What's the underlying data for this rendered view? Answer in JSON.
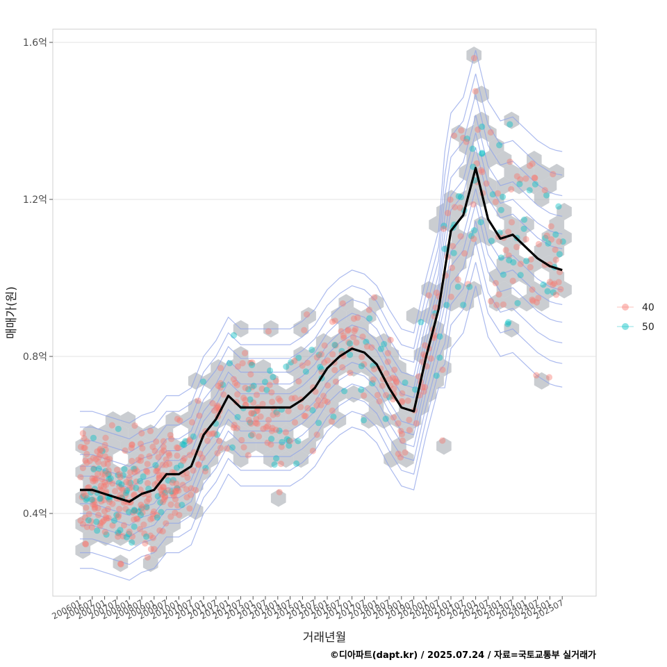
{
  "chart_data": {
    "type": "scatter",
    "xlabel": "거래년월",
    "ylabel": "매매가(원)",
    "caption": "©디아파트(dapt.kr) / 2025.07.24 / 자료=국토교통부 실거래가",
    "x_ticks": [
      "200601",
      "200607",
      "200701",
      "200707",
      "200801",
      "200807",
      "200901",
      "200907",
      "201001",
      "201007",
      "201101",
      "201107",
      "201201",
      "201207",
      "201301",
      "201307",
      "201401",
      "201407",
      "201501",
      "201507",
      "201601",
      "201607",
      "201701",
      "201707",
      "201801",
      "201807",
      "201901",
      "201907",
      "202001",
      "202007",
      "202101",
      "202107",
      "202201",
      "202207",
      "202301",
      "202307",
      "202401",
      "202407",
      "202501",
      "202507"
    ],
    "y_ticks": [
      {
        "value": 0.4,
        "label": "0.4억"
      },
      {
        "value": 0.8,
        "label": "0.8억"
      },
      {
        "value": 1.2,
        "label": "1.2억"
      },
      {
        "value": 1.6,
        "label": "1.6억"
      }
    ],
    "ylim": [
      0.2,
      1.65
    ],
    "grid": true,
    "legend": {
      "position": "right",
      "entries": [
        {
          "label": "40",
          "color": "#F8766D"
        },
        {
          "label": "50",
          "color": "#00BFC4"
        }
      ]
    },
    "colors": {
      "series_40": "#F8766D",
      "series_50": "#00BFC4",
      "hexbin": "#a9aeb4",
      "contour": "#8fa3e8",
      "trend": "#000000"
    },
    "trend_line": {
      "x": [
        "200601",
        "200607",
        "200801",
        "200807",
        "200901",
        "200907",
        "201001",
        "201007",
        "201101",
        "201107",
        "201201",
        "201207",
        "201301",
        "201307",
        "201401",
        "201407",
        "201501",
        "201507",
        "201601",
        "201607",
        "201701",
        "201707",
        "201801",
        "201807",
        "201901",
        "201907",
        "202001",
        "202007",
        "202101",
        "202107",
        "202201",
        "202207",
        "202301",
        "202307",
        "202401",
        "202407",
        "202501",
        "202507"
      ],
      "y": [
        0.46,
        0.46,
        0.43,
        0.45,
        0.46,
        0.5,
        0.5,
        0.52,
        0.6,
        0.64,
        0.7,
        0.67,
        0.67,
        0.67,
        0.67,
        0.67,
        0.69,
        0.72,
        0.77,
        0.8,
        0.82,
        0.81,
        0.78,
        0.72,
        0.67,
        0.66,
        0.8,
        0.92,
        1.12,
        1.16,
        1.28,
        1.15,
        1.1,
        1.11,
        1.08,
        1.05,
        1.03,
        1.02
      ]
    }
  }
}
